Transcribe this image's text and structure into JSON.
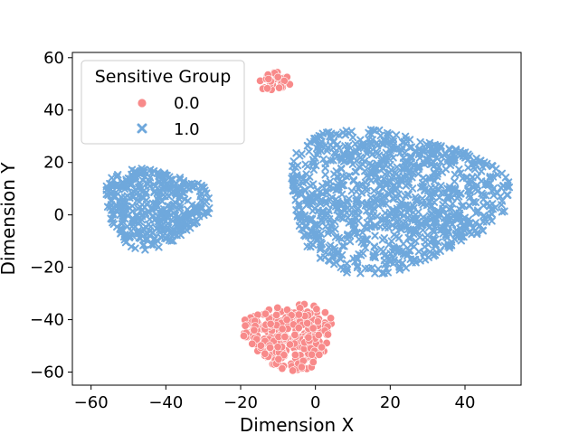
{
  "chart_data": {
    "type": "scatter",
    "title": "",
    "xlabel": "Dimension X",
    "ylabel": "Dimension Y",
    "xlim": [
      -65,
      55
    ],
    "ylim": [
      -65,
      62
    ],
    "xticks": [
      -60,
      -40,
      -20,
      0,
      20,
      40
    ],
    "yticks": [
      -60,
      -40,
      -20,
      0,
      20,
      40,
      60
    ],
    "grid": false,
    "legend": {
      "title": "Sensitive Group",
      "placement": "top-left",
      "entries": [
        {
          "label": "0.0",
          "marker": "circle",
          "color": "#f88a8a"
        },
        {
          "label": "1.0",
          "marker": "x",
          "color": "#6fa8dc"
        }
      ]
    },
    "series": [
      {
        "name": "0.0",
        "marker": "circle",
        "color": "#f88a8a",
        "clusters": [
          {
            "center": [
              -11,
              51
            ],
            "radius": [
              4.5,
              3.8
            ],
            "count": 40
          },
          {
            "center": [
              -7,
              -46
            ],
            "radius": [
              12,
              12.5
            ],
            "count": 320
          }
        ]
      },
      {
        "name": "1.0",
        "marker": "x",
        "color": "#6fa8dc",
        "clusters": [
          {
            "center": [
              -43,
              3
            ],
            "radius": [
              14,
              15
            ],
            "count": 420
          },
          {
            "center": [
              20,
              6
            ],
            "radius": [
              29,
              27
            ],
            "count": 1100
          }
        ]
      }
    ]
  }
}
